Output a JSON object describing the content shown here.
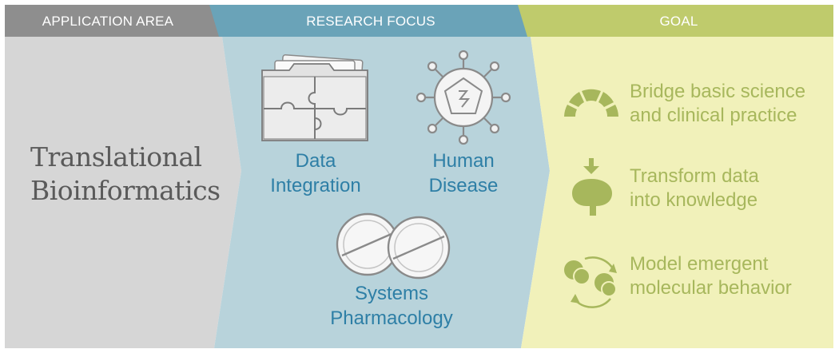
{
  "headers": {
    "application_area": "APPLICATION AREA",
    "research_focus": "RESEARCH FOCUS",
    "goal": "GOAL"
  },
  "application": {
    "title_line1": "Translational",
    "title_line2": "Bioinformatics"
  },
  "research_focus": {
    "data_integration": {
      "line1": "Data",
      "line2": "Integration",
      "icon": "puzzle-folder-icon"
    },
    "human_disease": {
      "line1": "Human",
      "line2": "Disease",
      "icon": "virus-icon"
    },
    "systems_pharmacology": {
      "line1": "Systems",
      "line2": "Pharmacology",
      "icon": "pills-icon"
    }
  },
  "goals": {
    "bridge": {
      "line1": "Bridge basic science",
      "line2": "and clinical practice",
      "icon": "arch-icon"
    },
    "transform": {
      "line1": "Transform data",
      "line2": "into knowledge",
      "icon": "brain-icon"
    },
    "model": {
      "line1": "Model emergent",
      "line2": "molecular behavior",
      "icon": "molecule-cycle-icon"
    }
  },
  "colors": {
    "header_gray": "#8e8e8e",
    "header_blue": "#6aa3b8",
    "header_green": "#bfcb6c",
    "panel_gray": "#d6d6d6",
    "panel_blue": "#b8d3db",
    "panel_green": "#f1f1ba",
    "text_blue": "#2e7fa6",
    "text_green": "#a7b75c",
    "text_gray": "#5a5a5a"
  }
}
